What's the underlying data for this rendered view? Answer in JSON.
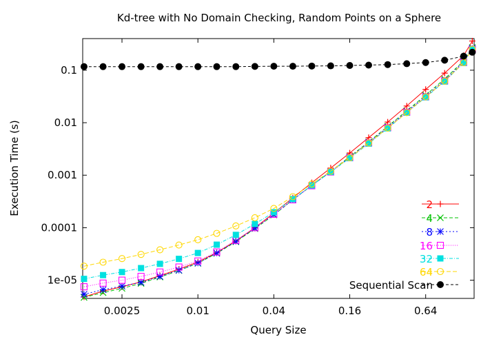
{
  "chart_data": {
    "type": "line",
    "title": "Kd-tree with No Domain Checking, Random Points on a Sphere",
    "xlabel": "Query Size",
    "ylabel": "Execution Time (s)",
    "xscale": "log",
    "yscale": "log",
    "xlim": [
      0.00122,
      1.55
    ],
    "ylim": [
      4.5e-06,
      0.4
    ],
    "xticks": [
      {
        "value": 0.0025,
        "label": "0.0025"
      },
      {
        "value": 0.01,
        "label": "0.01"
      },
      {
        "value": 0.04,
        "label": "0.04"
      },
      {
        "value": 0.16,
        "label": "0.16"
      },
      {
        "value": 0.64,
        "label": "0.64"
      }
    ],
    "yticks": [
      {
        "value": 1e-05,
        "label": "1e-05"
      },
      {
        "value": 0.0001,
        "label": "0.0001"
      },
      {
        "value": 0.001,
        "label": "0.001"
      },
      {
        "value": 0.01,
        "label": "0.01"
      },
      {
        "value": 0.1,
        "label": "0.1"
      }
    ],
    "legend_position": "bottom-right",
    "grid": false,
    "x": [
      0.00125,
      0.00177,
      0.0025,
      0.00354,
      0.005,
      0.00707,
      0.01,
      0.0141,
      0.02,
      0.0283,
      0.04,
      0.0566,
      0.08,
      0.113,
      0.16,
      0.226,
      0.32,
      0.453,
      0.64,
      0.905,
      1.28,
      1.5
    ],
    "series": [
      {
        "name": "2",
        "color": "#ff0000",
        "marker": "plus",
        "dash": "",
        "values": [
          4.8e-06,
          6.2e-06,
          7.5e-06,
          9.3e-06,
          1.22e-05,
          1.62e-05,
          2.22e-05,
          3.35e-05,
          5.6e-05,
          0.0001,
          0.00019,
          0.00037,
          0.00072,
          0.00137,
          0.00265,
          0.0052,
          0.0103,
          0.0208,
          0.043,
          0.088,
          0.19,
          0.36
        ]
      },
      {
        "name": "4",
        "color": "#00c000",
        "marker": "x",
        "dash": "5,3",
        "values": [
          4.7e-06,
          5.8e-06,
          7e-06,
          8.7e-06,
          1.15e-05,
          1.53e-05,
          2.1e-05,
          3.25e-05,
          5.4e-05,
          9.6e-05,
          0.000175,
          0.00034,
          0.00064,
          0.00118,
          0.00225,
          0.0043,
          0.0085,
          0.0168,
          0.0335,
          0.068,
          0.15,
          0.27
        ]
      },
      {
        "name": "8",
        "color": "#0000ff",
        "marker": "star",
        "dash": "2,3",
        "values": [
          5.4e-06,
          6.6e-06,
          7.7e-06,
          9.1e-06,
          1.18e-05,
          1.55e-05,
          2.12e-05,
          3.3e-05,
          5.5e-05,
          9.8e-05,
          0.000178,
          0.00034,
          0.00064,
          0.00117,
          0.0022,
          0.0042,
          0.0082,
          0.0162,
          0.032,
          0.064,
          0.145,
          0.26
        ]
      },
      {
        "name": "16",
        "color": "#ff00ff",
        "marker": "square",
        "dash": "1,2",
        "values": [
          7.5e-06,
          8.8e-06,
          1e-05,
          1.18e-05,
          1.43e-05,
          1.78e-05,
          2.32e-05,
          3.45e-05,
          5.75e-05,
          0.0001,
          0.00018,
          0.00034,
          0.00063,
          0.00115,
          0.00215,
          0.0041,
          0.008,
          0.0158,
          0.031,
          0.062,
          0.14,
          0.25
        ]
      },
      {
        "name": "32",
        "color": "#00e0e0",
        "marker": "filled-square",
        "dash": "5,2,1,2",
        "values": [
          1.06e-05,
          1.25e-05,
          1.43e-05,
          1.7e-05,
          2.05e-05,
          2.55e-05,
          3.3e-05,
          4.75e-05,
          7.3e-05,
          0.000118,
          0.000197,
          0.00035,
          0.00064,
          0.00115,
          0.00212,
          0.004,
          0.0078,
          0.0155,
          0.0305,
          0.061,
          0.138,
          0.25
        ]
      },
      {
        "name": "64",
        "color": "#ffd700",
        "marker": "circle",
        "dash": "6,3",
        "values": [
          1.85e-05,
          2.2e-05,
          2.58e-05,
          3.1e-05,
          3.8e-05,
          4.68e-05,
          5.9e-05,
          7.8e-05,
          0.000108,
          0.000155,
          0.000233,
          0.00039,
          0.00068,
          0.0012,
          0.00215,
          0.0041,
          0.0079,
          0.0156,
          0.031,
          0.062,
          0.139,
          0.25
        ]
      },
      {
        "name": "Sequential Scan",
        "color": "#000000",
        "marker": "filled-circle",
        "dash": "4,3",
        "values": [
          0.117,
          0.117,
          0.117,
          0.117,
          0.117,
          0.117,
          0.117,
          0.117,
          0.117,
          0.118,
          0.119,
          0.119,
          0.12,
          0.121,
          0.123,
          0.125,
          0.128,
          0.133,
          0.14,
          0.155,
          0.185,
          0.22
        ]
      }
    ]
  }
}
